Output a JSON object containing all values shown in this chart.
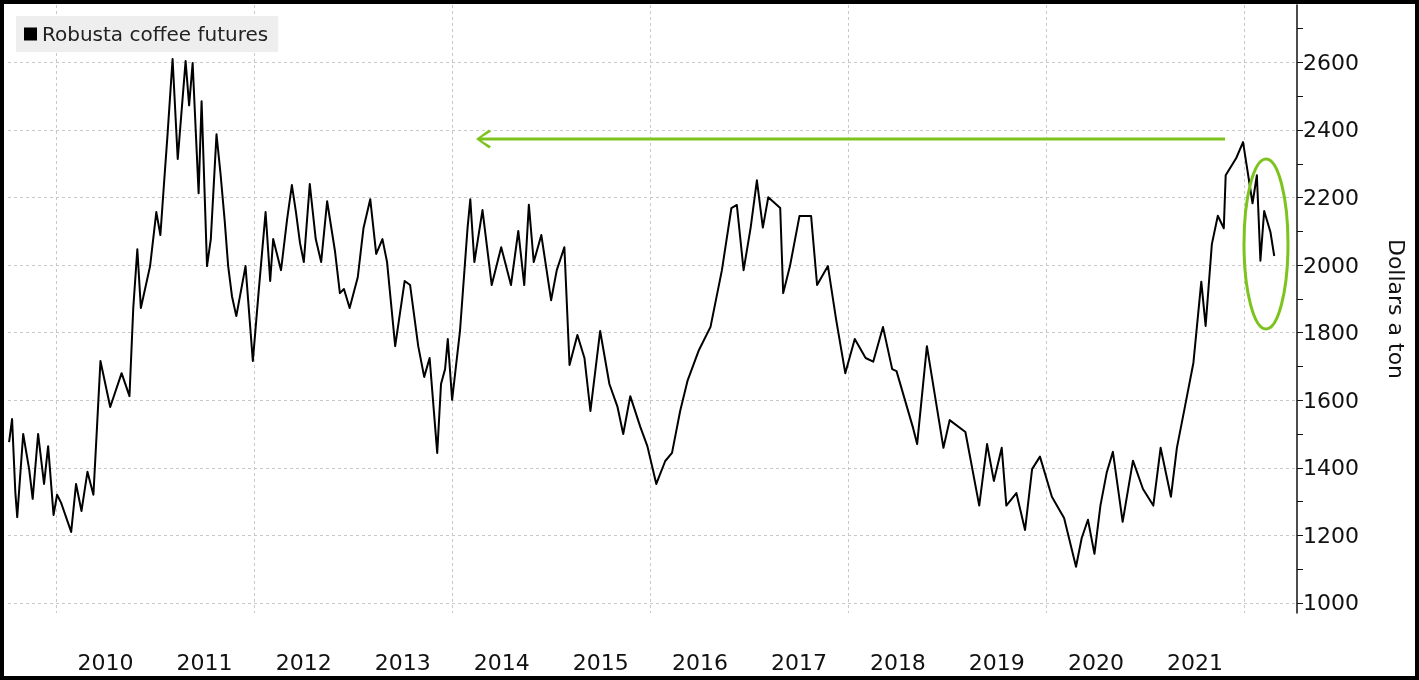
{
  "chart_data": {
    "type": "line",
    "ylabel": "Dollars a ton",
    "legend": "top left",
    "grid": true,
    "marker": "none",
    "line_style": "solid",
    "xlim": [
      "2009-07-07",
      "2022-07-13"
    ],
    "xticks": [
      {
        "value": "2010-01-01",
        "label": null
      },
      {
        "value": "2010-07-02",
        "label": "2010"
      },
      {
        "value": "2011-07-02",
        "label": "2011"
      },
      {
        "value": "2012-01-01",
        "label": null
      },
      {
        "value": "2012-07-02",
        "label": "2012"
      },
      {
        "value": "2013-07-02",
        "label": "2013"
      },
      {
        "value": "2014-01-01",
        "label": null
      },
      {
        "value": "2014-07-02",
        "label": "2014"
      },
      {
        "value": "2015-07-02",
        "label": "2015"
      },
      {
        "value": "2016-01-01",
        "label": null
      },
      {
        "value": "2016-07-02",
        "label": "2016"
      },
      {
        "value": "2017-07-02",
        "label": "2017"
      },
      {
        "value": "2018-01-01",
        "label": null
      },
      {
        "value": "2018-07-02",
        "label": "2018"
      },
      {
        "value": "2019-07-02",
        "label": "2019"
      },
      {
        "value": "2020-01-01",
        "label": null
      },
      {
        "value": "2020-07-02",
        "label": "2020"
      },
      {
        "value": "2021-07-02",
        "label": "2021"
      },
      {
        "value": "2022-01-01",
        "label": null
      }
    ],
    "ylim": [
      970,
      2770
    ],
    "yticks": [
      1000,
      {
        "value": 1100,
        "label": null
      },
      1200,
      {
        "value": 1300,
        "label": null
      },
      1400,
      {
        "value": 1500,
        "label": null
      },
      1600,
      {
        "value": 1700,
        "label": null
      },
      1800,
      {
        "value": 1900,
        "label": null
      },
      2000,
      {
        "value": 2100,
        "label": null
      },
      2200,
      {
        "value": 2300,
        "label": null
      },
      2400,
      {
        "value": 2500,
        "label": null
      },
      2600,
      {
        "value": 2700,
        "label": null
      }
    ],
    "x": [
      "2009-07-11",
      "2009-07-22",
      "2009-08-03",
      "2009-08-10",
      "2009-09-01",
      "2009-09-23",
      "2009-10-06",
      "2009-10-26",
      "2009-11-17",
      "2009-12-02",
      "2009-12-22",
      "2010-01-04",
      "2010-01-19",
      "2010-02-25",
      "2010-03-15",
      "2010-04-04",
      "2010-04-26",
      "2010-05-18",
      "2010-06-01",
      "2010-06-13",
      "2010-07-19",
      "2010-08-30",
      "2010-09-28",
      "2010-10-12",
      "2010-10-27",
      "2010-11-09",
      "2010-12-13",
      "2011-01-05",
      "2011-01-20",
      "2011-02-02",
      "2011-02-15",
      "2011-03-06",
      "2011-03-25",
      "2011-04-23",
      "2011-05-06",
      "2011-05-19",
      "2011-05-30",
      "2011-06-10",
      "2011-06-21",
      "2011-07-11",
      "2011-07-25",
      "2011-08-15",
      "2011-08-30",
      "2011-09-14",
      "2011-09-27",
      "2011-10-11",
      "2011-10-27",
      "2011-11-30",
      "2011-12-27",
      "2012-01-17",
      "2012-02-12",
      "2012-02-29",
      "2012-03-11",
      "2012-04-09",
      "2012-05-01",
      "2012-05-19",
      "2012-06-03",
      "2012-06-18",
      "2012-07-02",
      "2012-07-24",
      "2012-08-15",
      "2012-09-04",
      "2012-09-26",
      "2012-10-25",
      "2012-11-12",
      "2012-11-27",
      "2012-12-18",
      "2013-01-17",
      "2013-02-07",
      "2013-03-04",
      "2013-03-26",
      "2013-04-18",
      "2013-05-05",
      "2013-06-04",
      "2013-07-09",
      "2013-07-29",
      "2013-08-28",
      "2013-09-19",
      "2013-10-09",
      "2013-11-06",
      "2013-11-20",
      "2013-12-05",
      "2013-12-15",
      "2013-12-31",
      "2014-01-29",
      "2014-02-26",
      "2014-03-08",
      "2014-03-23",
      "2014-04-22",
      "2014-05-26",
      "2014-06-30",
      "2014-08-05",
      "2014-09-01",
      "2014-09-23",
      "2014-10-10",
      "2014-10-28",
      "2014-11-25",
      "2014-12-31",
      "2015-01-21",
      "2015-02-18",
      "2015-03-09",
      "2015-04-07",
      "2015-05-03",
      "2015-05-25",
      "2015-06-30",
      "2015-08-03",
      "2015-09-02",
      "2015-09-23",
      "2015-10-19",
      "2015-11-25",
      "2015-12-21",
      "2016-01-23",
      "2016-02-25",
      "2016-03-21",
      "2016-04-20",
      "2016-05-17",
      "2016-06-28",
      "2016-08-10",
      "2016-09-21",
      "2016-10-26",
      "2016-11-15",
      "2016-12-10",
      "2017-01-05",
      "2017-01-28",
      "2017-02-19",
      "2017-03-11",
      "2017-04-24",
      "2017-05-05",
      "2017-05-30",
      "2017-07-04",
      "2017-08-16",
      "2017-09-07",
      "2017-10-17",
      "2017-11-16",
      "2017-12-20",
      "2018-01-24",
      "2018-03-05",
      "2018-04-02",
      "2018-05-08",
      "2018-06-11",
      "2018-06-27",
      "2018-08-27",
      "2018-09-11",
      "2018-10-17",
      "2018-12-17",
      "2019-01-09",
      "2019-03-08",
      "2019-04-28",
      "2019-05-27",
      "2019-06-21",
      "2019-07-20",
      "2019-08-06",
      "2019-09-12",
      "2019-10-14",
      "2019-11-09",
      "2019-12-08",
      "2020-01-21",
      "2020-03-06",
      "2020-04-19",
      "2020-05-10",
      "2020-06-02",
      "2020-06-26",
      "2020-07-18",
      "2020-08-10",
      "2020-09-02",
      "2020-10-08",
      "2020-11-15",
      "2020-12-22",
      "2021-01-29",
      "2021-02-25",
      "2021-04-04",
      "2021-04-26",
      "2021-05-25",
      "2021-06-26",
      "2021-07-25",
      "2021-08-10",
      "2021-09-02",
      "2021-09-24",
      "2021-10-16",
      "2021-10-23",
      "2021-12-01",
      "2021-12-26",
      "2022-01-30",
      "2022-02-15",
      "2022-02-28",
      "2022-03-14",
      "2022-04-06",
      "2022-04-20"
    ],
    "series": [
      {
        "name": "Robusta coffee futures",
        "color": "#000000",
        "values": [
          1476,
          1544,
          1328,
          1254,
          1500,
          1396,
          1308,
          1500,
          1352,
          1464,
          1260,
          1320,
          1296,
          1210,
          1352,
          1272,
          1388,
          1320,
          1532,
          1716,
          1580,
          1680,
          1612,
          1873,
          2047,
          1873,
          1997,
          2157,
          2089,
          2237,
          2382,
          2610,
          2314,
          2604,
          2473,
          2598,
          2405,
          2213,
          2485,
          1997,
          2077,
          2387,
          2269,
          2133,
          1997,
          1908,
          1849,
          1997,
          1716,
          1917,
          2157,
          1953,
          2077,
          1985,
          2133,
          2237,
          2157,
          2065,
          2009,
          2240,
          2077,
          2009,
          2189,
          2041,
          1917,
          1929,
          1873,
          1964,
          2109,
          2195,
          2033,
          2077,
          2009,
          1760,
          1953,
          1941,
          1760,
          1669,
          1725,
          1444,
          1648,
          1692,
          1781,
          1601,
          1805,
          2111,
          2195,
          2009,
          2163,
          1941,
          2053,
          1941,
          2101,
          1941,
          2179,
          2009,
          2089,
          1896,
          1985,
          2053,
          1704,
          1793,
          1725,
          1568,
          1805,
          1648,
          1580,
          1500,
          1612,
          1521,
          1464,
          1352,
          1420,
          1444,
          1568,
          1657,
          1748,
          1817,
          1985,
          2169,
          2178,
          1985,
          2111,
          2251,
          2111,
          2201,
          2169,
          1917,
          1997,
          2145,
          2145,
          1941,
          1997,
          1840,
          1680,
          1781,
          1725,
          1714,
          1817,
          1692,
          1686,
          1518,
          1470,
          1760,
          1459,
          1541,
          1506,
          1288,
          1470,
          1361,
          1459,
          1288,
          1325,
          1216,
          1396,
          1433,
          1314,
          1251,
          1107,
          1192,
          1246,
          1145,
          1288,
          1385,
          1447,
          1240,
          1421,
          1337,
          1288,
          1459,
          1314,
          1459,
          1578,
          1711,
          1951,
          1820,
          2062,
          2146,
          2109,
          2266,
          2317,
          2364,
          2183,
          2266,
          2013,
          2160,
          2098,
          2027
        ]
      }
    ]
  }
}
